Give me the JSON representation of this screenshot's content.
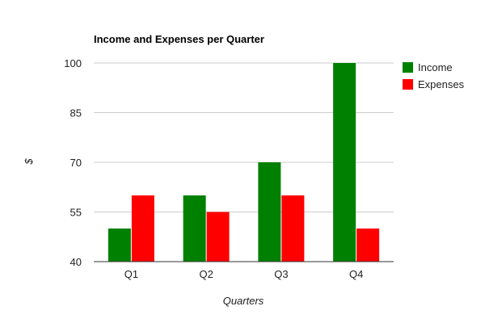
{
  "chart_data": {
    "type": "bar",
    "title": "Income and Expenses per Quarter",
    "xlabel": "Quarters",
    "ylabel": "$",
    "categories": [
      "Q1",
      "Q2",
      "Q3",
      "Q4"
    ],
    "ylim": [
      40,
      100
    ],
    "yticks": [
      "40",
      "55",
      "70",
      "85",
      "100"
    ],
    "grid": true,
    "legend": "right",
    "series": [
      {
        "name": "Income",
        "color": "#008000",
        "values": [
          50,
          60,
          70,
          100
        ]
      },
      {
        "name": "Expenses",
        "color": "#ff0000",
        "values": [
          60,
          55,
          60,
          50
        ]
      }
    ]
  }
}
